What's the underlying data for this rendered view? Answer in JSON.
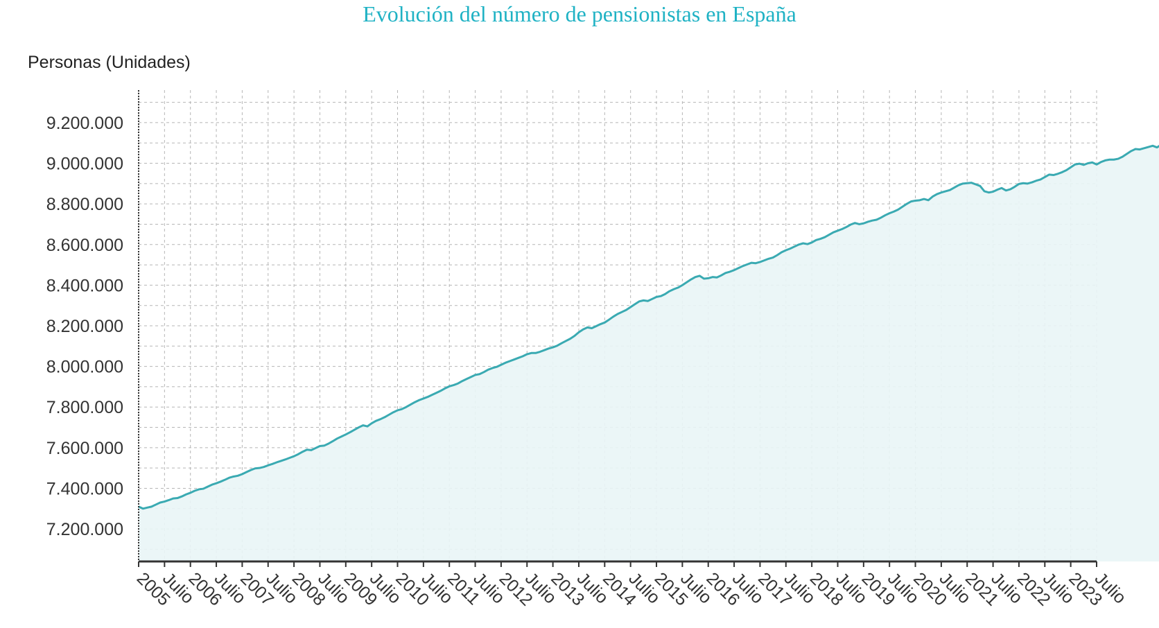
{
  "chart_data": {
    "type": "area",
    "title": "Evolución del número de pensionistas en España",
    "ylabel": "Personas (Unidades)",
    "xlabel": "",
    "ylim": [
      7040000,
      9360000
    ],
    "yticks": [
      7200000,
      7400000,
      7600000,
      7800000,
      8000000,
      8200000,
      8400000,
      8600000,
      8800000,
      9000000,
      9200000
    ],
    "ytick_labels": [
      "7.200.000",
      "7.400.000",
      "7.600.000",
      "7.800.000",
      "8.000.000",
      "8.200.000",
      "8.400.000",
      "8.600.000",
      "8.800.000",
      "9.000.000",
      "9.200.000"
    ],
    "xtick_labels": [
      "2005",
      "Julio",
      "2006",
      "Julio",
      "2007",
      "Julio",
      "2008",
      "Julio",
      "2009",
      "Julio",
      "2010",
      "Julio",
      "2011",
      "Julio",
      "2012",
      "Julio",
      "2013",
      "Julio",
      "2014",
      "Julio",
      "2015",
      "Julio",
      "2016",
      "Julio",
      "2017",
      "Julio",
      "2018",
      "Julio",
      "2019",
      "Julio",
      "2020",
      "Julio",
      "2021",
      "Julio",
      "2022",
      "Julio",
      "2023",
      "Julio"
    ],
    "x_start": 2005.0,
    "x_step_months": 1,
    "grid": true,
    "colors": {
      "line": "#3aaab2",
      "fill": "#e9f5f6",
      "grid": "#b5b5b5",
      "axis": "#333333",
      "title": "#1fb2c4"
    },
    "series": [
      {
        "name": "Pensionistas",
        "values": [
          7310000,
          7300000,
          7305000,
          7310000,
          7320000,
          7330000,
          7335000,
          7342000,
          7350000,
          7352000,
          7360000,
          7370000,
          7378000,
          7388000,
          7395000,
          7398000,
          7408000,
          7418000,
          7425000,
          7433000,
          7442000,
          7452000,
          7458000,
          7462000,
          7470000,
          7480000,
          7490000,
          7498000,
          7500000,
          7505000,
          7513000,
          7520000,
          7528000,
          7535000,
          7542000,
          7550000,
          7558000,
          7568000,
          7580000,
          7590000,
          7588000,
          7598000,
          7608000,
          7610000,
          7620000,
          7632000,
          7645000,
          7655000,
          7665000,
          7676000,
          7688000,
          7700000,
          7710000,
          7705000,
          7720000,
          7732000,
          7740000,
          7750000,
          7762000,
          7774000,
          7784000,
          7790000,
          7800000,
          7812000,
          7824000,
          7834000,
          7842000,
          7850000,
          7860000,
          7870000,
          7880000,
          7892000,
          7902000,
          7908000,
          7916000,
          7928000,
          7938000,
          7948000,
          7958000,
          7962000,
          7972000,
          7984000,
          7992000,
          7998000,
          8008000,
          8018000,
          8026000,
          8034000,
          8042000,
          8050000,
          8060000,
          8066000,
          8066000,
          8072000,
          8080000,
          8088000,
          8094000,
          8102000,
          8114000,
          8125000,
          8136000,
          8150000,
          8168000,
          8182000,
          8192000,
          8188000,
          8198000,
          8208000,
          8216000,
          8230000,
          8245000,
          8258000,
          8268000,
          8278000,
          8292000,
          8306000,
          8320000,
          8325000,
          8322000,
          8332000,
          8342000,
          8346000,
          8356000,
          8370000,
          8380000,
          8388000,
          8400000,
          8414000,
          8428000,
          8440000,
          8446000,
          8432000,
          8434000,
          8440000,
          8438000,
          8448000,
          8460000,
          8466000,
          8474000,
          8484000,
          8494000,
          8502000,
          8510000,
          8508000,
          8514000,
          8522000,
          8530000,
          8536000,
          8548000,
          8562000,
          8572000,
          8580000,
          8590000,
          8600000,
          8606000,
          8602000,
          8610000,
          8622000,
          8628000,
          8636000,
          8648000,
          8660000,
          8668000,
          8676000,
          8686000,
          8698000,
          8706000,
          8700000,
          8704000,
          8712000,
          8718000,
          8722000,
          8732000,
          8744000,
          8754000,
          8762000,
          8772000,
          8786000,
          8800000,
          8812000,
          8816000,
          8818000,
          8824000,
          8818000,
          8836000,
          8848000,
          8856000,
          8862000,
          8868000,
          8880000,
          8892000,
          8900000,
          8902000,
          8904000,
          8896000,
          8888000,
          8862000,
          8856000,
          8860000,
          8870000,
          8878000,
          8866000,
          8872000,
          8884000,
          8898000,
          8902000,
          8900000,
          8906000,
          8914000,
          8920000,
          8932000,
          8944000,
          8942000,
          8948000,
          8956000,
          8966000,
          8980000,
          8994000,
          8998000,
          8992000,
          9000000,
          9004000,
          8994000,
          9006000,
          9014000,
          9018000,
          9018000,
          9022000,
          9032000,
          9046000,
          9060000,
          9070000,
          9068000,
          9074000,
          9080000,
          9086000,
          9078000,
          9092000,
          9104000
        ]
      }
    ]
  }
}
